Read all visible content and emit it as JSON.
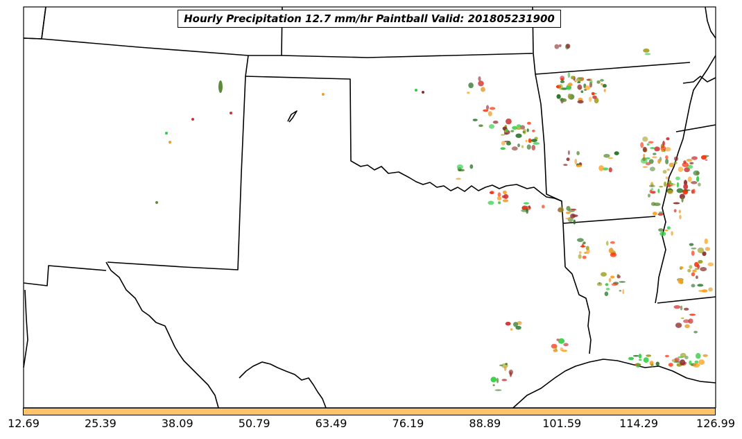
{
  "title": "Hourly Precipitation 12.7 mm/hr Paintball Valid: 201805231900",
  "colorbar": {
    "color": "#ffc36a",
    "tick_labels": [
      "12.69",
      "25.39",
      "38.09",
      "50.79",
      "63.49",
      "76.19",
      "88.89",
      "101.59",
      "114.29",
      "126.99"
    ]
  },
  "colors": {
    "border": "#000000",
    "member_palette": [
      "#ff2a00",
      "#ff9f1c",
      "#2ecc40",
      "#1f6e1f",
      "#8b2e2e",
      "#a0a020",
      "#e8a030",
      "#cc3333",
      "#5c8c3a"
    ]
  }
}
